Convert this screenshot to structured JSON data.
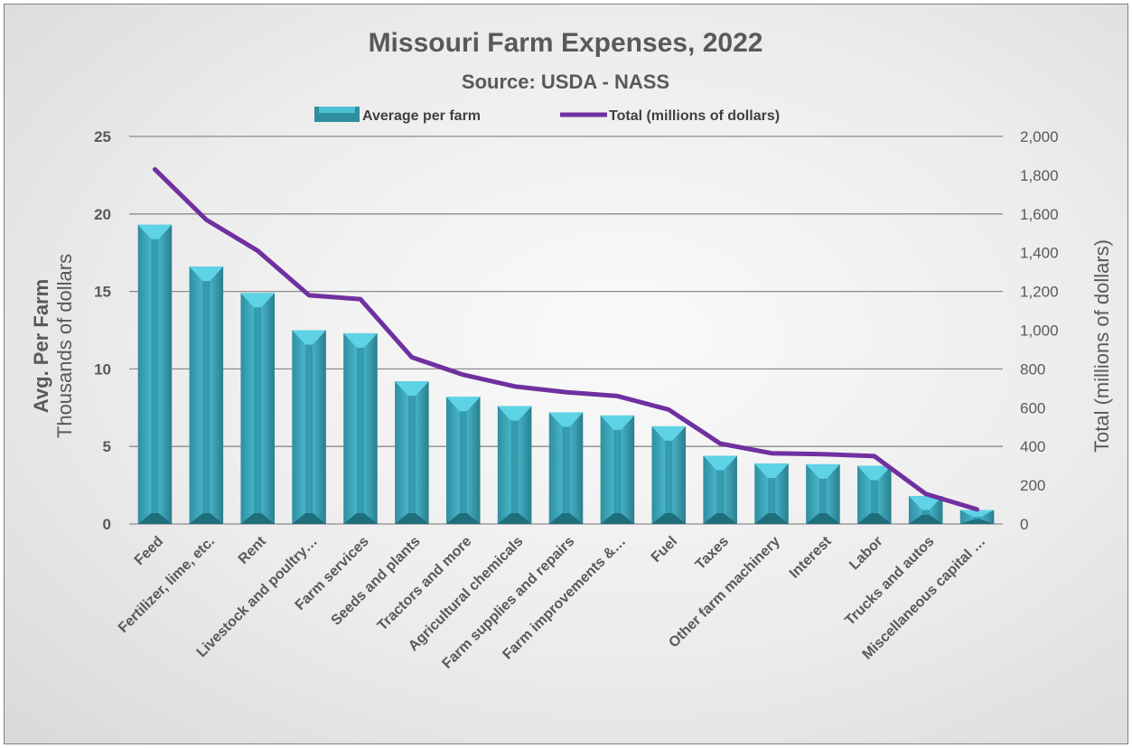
{
  "chart_data": {
    "type": "bar",
    "title": "Missouri Farm Expenses, 2022",
    "subtitle": "Source: USDA - NASS",
    "categories": [
      "Feed",
      "Fertilizer, lime, etc.",
      "Rent",
      "Livestock and poultry…",
      "Farm services",
      "Seeds and plants",
      "Tractors and more",
      "Agricultural chemicals",
      "Farm supplies and repairs",
      "Farm improvements &…",
      "Fuel",
      "Taxes",
      "Other farm machinery",
      "Interest",
      "Labor",
      "Trucks and autos",
      "Miscellaneous capital …"
    ],
    "series": [
      {
        "name": "Average per farm",
        "type": "bar",
        "axis": "left",
        "color": "#3aa6b9",
        "values": [
          19.3,
          16.6,
          14.9,
          12.5,
          12.3,
          9.2,
          8.2,
          7.6,
          7.2,
          7.0,
          6.3,
          4.4,
          3.9,
          3.85,
          3.75,
          1.8,
          0.9
        ]
      },
      {
        "name": "Total (millions of dollars)",
        "type": "line",
        "axis": "right",
        "color": "#7030a0",
        "values": [
          1830,
          1570,
          1410,
          1180,
          1160,
          860,
          770,
          710,
          680,
          660,
          590,
          415,
          365,
          360,
          350,
          155,
          75
        ]
      }
    ],
    "ylabel_bold": "Avg. Per Farm",
    "ylabel": "Thousands of dollars",
    "y2label": "Total (millions of dollars)",
    "ylim": [
      0,
      25
    ],
    "y2lim": [
      0,
      2000
    ],
    "yticks": [
      "0",
      "5",
      "10",
      "15",
      "20",
      "25"
    ],
    "y2ticks": [
      "0",
      "200",
      "400",
      "600",
      "800",
      "1,000",
      "1,200",
      "1,400",
      "1,600",
      "1,800",
      "2,000"
    ],
    "grid": true,
    "legend_position": "top"
  }
}
